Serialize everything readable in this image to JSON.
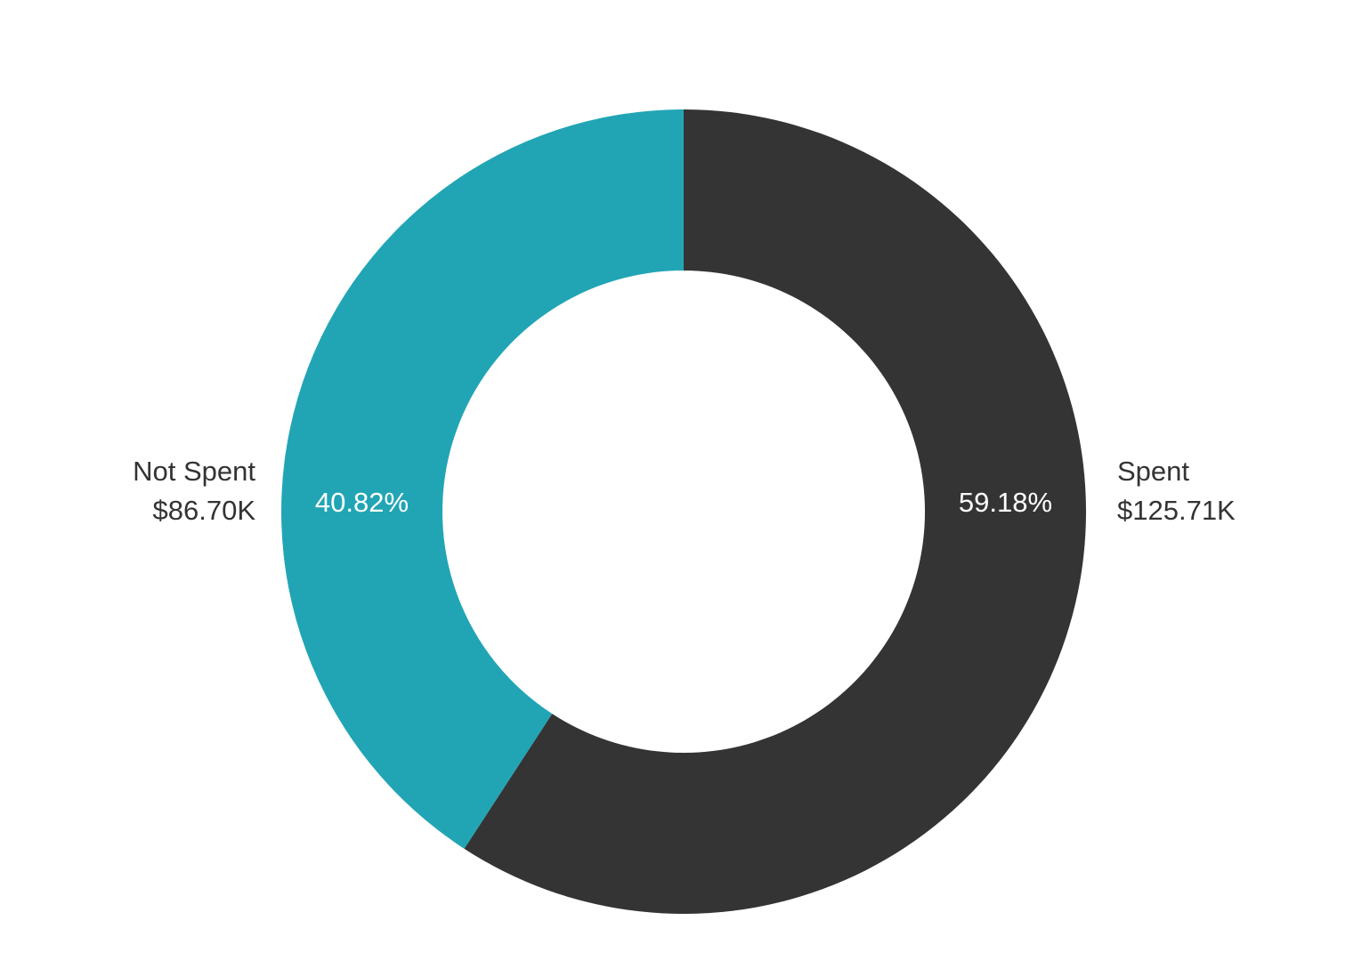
{
  "chart_data": {
    "type": "donut",
    "categories": [
      "Spent",
      "Not Spent"
    ],
    "values": [
      59.18,
      40.82
    ],
    "value_labels": [
      "59.18%",
      "40.82%"
    ],
    "amounts": [
      125710,
      86700
    ],
    "amount_labels": [
      "$125.71K",
      "$86.70K"
    ],
    "colors": [
      "#343434",
      "#21a5b5"
    ]
  }
}
